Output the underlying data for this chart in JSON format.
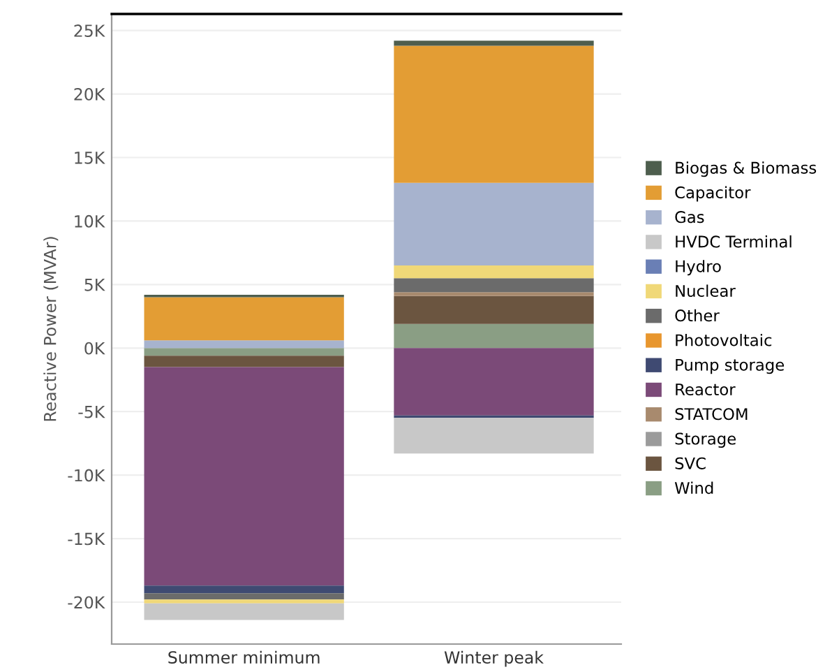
{
  "chart_data": {
    "type": "bar",
    "stacked": true,
    "ylabel": "Reactive Power (MVAr)",
    "categories": [
      "Summer minimum",
      "Winter peak"
    ],
    "ylim": [
      -23300,
      26300
    ],
    "yticks": [
      {
        "value": -20000,
        "label": "-20K"
      },
      {
        "value": -15000,
        "label": "-15K"
      },
      {
        "value": -10000,
        "label": "-10K"
      },
      {
        "value": -5000,
        "label": "-5K"
      },
      {
        "value": 0,
        "label": "0K"
      },
      {
        "value": 5000,
        "label": "5K"
      },
      {
        "value": 10000,
        "label": "10K"
      },
      {
        "value": 15000,
        "label": "15K"
      },
      {
        "value": 20000,
        "label": "20K"
      },
      {
        "value": 25000,
        "label": "25K"
      }
    ],
    "grid": "y",
    "legend": "right",
    "series": [
      {
        "name": "Wind",
        "color": "#8a9e84",
        "values": [
          -600,
          1900
        ]
      },
      {
        "name": "SVC",
        "color": "#6b5540",
        "values": [
          -900,
          2200
        ]
      },
      {
        "name": "Storage",
        "color": "#9b9b9b",
        "values": [
          null,
          null
        ]
      },
      {
        "name": "STATCOM",
        "color": "#a88a6e",
        "values": [
          null,
          300
        ]
      },
      {
        "name": "Reactor",
        "color": "#7b4a78",
        "values": [
          -17200,
          -5300
        ]
      },
      {
        "name": "Pump storage",
        "color": "#3f4a72",
        "values": [
          -600,
          -200
        ]
      },
      {
        "name": "Photovoltaic",
        "color": "#e8962e",
        "values": [
          null,
          null
        ]
      },
      {
        "name": "Other",
        "color": "#6b6b6b",
        "values": [
          -500,
          1100
        ]
      },
      {
        "name": "Nuclear",
        "color": "#f0d878",
        "values": [
          -300,
          1000
        ]
      },
      {
        "name": "Hydro",
        "color": "#6a7fb5",
        "values": [
          null,
          null
        ]
      },
      {
        "name": "HVDC Terminal",
        "color": "#c8c8c8",
        "values": [
          -1300,
          -2800
        ]
      },
      {
        "name": "Gas",
        "color": "#a7b3ce",
        "values": [
          600,
          6500
        ]
      },
      {
        "name": "Capacitor",
        "color": "#e39d34",
        "values": [
          3400,
          10800
        ]
      },
      {
        "name": "Biogas & Biomass",
        "color": "#4e5e4e",
        "values": [
          200,
          400
        ]
      }
    ]
  }
}
